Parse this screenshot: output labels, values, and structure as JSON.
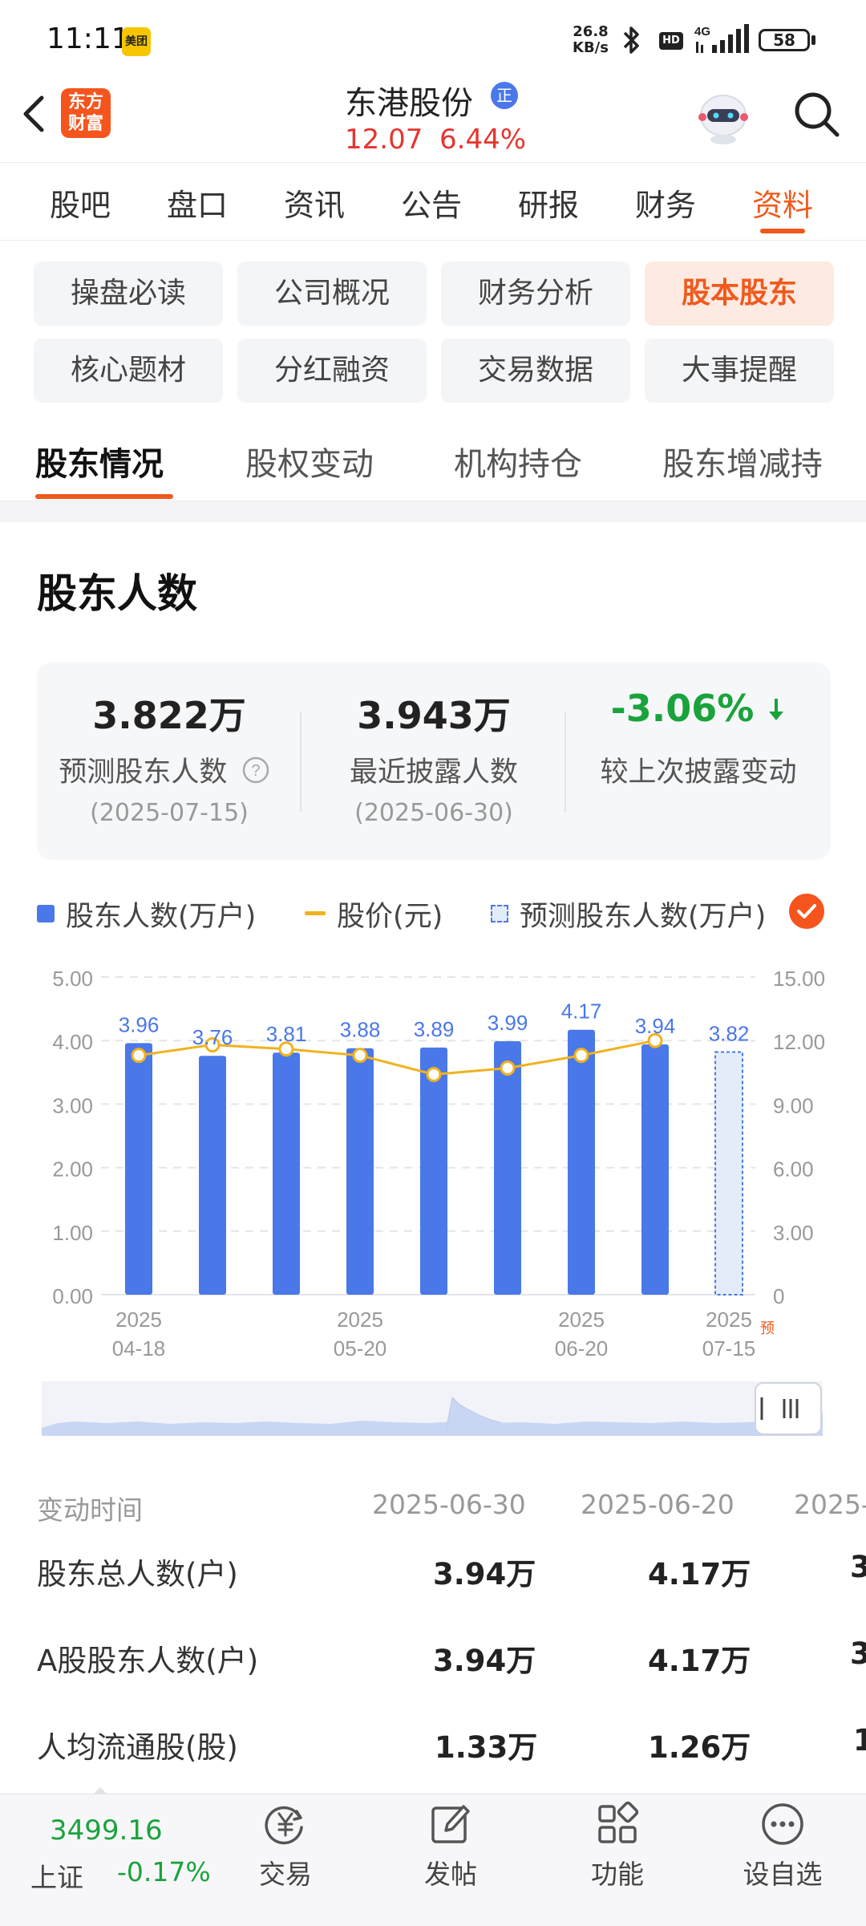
{
  "status": {
    "time": "11:11",
    "app_badge": "美团",
    "net_speed_value": "26.8",
    "net_speed_unit": "KB/s",
    "hd": "HD",
    "network": "4G",
    "battery": "58"
  },
  "header": {
    "app_logo": "东方财富",
    "stock_name": "东港股份",
    "badge": "正",
    "price": "12.07",
    "change_pct": "6.44%"
  },
  "main_tabs": [
    "股吧",
    "盘口",
    "资讯",
    "公告",
    "研报",
    "财务",
    "资料"
  ],
  "main_tab_active": "资料",
  "sub_grid": [
    "操盘必读",
    "公司概况",
    "财务分析",
    "股本股东",
    "核心题材",
    "分红融资",
    "交易数据",
    "大事提醒"
  ],
  "sub_grid_active": "股本股东",
  "shareholder_tabs": [
    "股东情况",
    "股权变动",
    "机构持仓",
    "股东增减持"
  ],
  "section_title": "股东人数",
  "stats": [
    {
      "value": "3.822万",
      "label": "预测股东人数",
      "date": "(2025-07-15)"
    },
    {
      "value": "3.943万",
      "label": "最近披露人数",
      "date": "(2025-06-30)"
    },
    {
      "value": "-3.06%",
      "label": "较上次披露变动"
    }
  ],
  "legend": {
    "holders": "股东人数(万户)",
    "price": "股价(元)",
    "predicted": "预测股东人数(万户)"
  },
  "colors": {
    "accent": "#ef5a1c",
    "bar": "#4a78e8",
    "line": "#f0b21e",
    "up": "#e5352e",
    "down": "#1aa33c"
  },
  "chart_data": {
    "type": "bar",
    "categories": [
      "2025-04-18",
      "",
      "",
      "2025-05-20",
      "",
      "",
      "2025-06-20",
      "",
      "2025-07-15"
    ],
    "x_tick_labels": [
      {
        "year": "2025",
        "date": "04-18",
        "index": 0
      },
      {
        "year": "2025",
        "date": "05-20",
        "index": 3
      },
      {
        "year": "2025",
        "date": "06-20",
        "index": 6
      },
      {
        "year": "2025",
        "date": "07-15",
        "index": 8
      }
    ],
    "predicted_marker": "预",
    "series": [
      {
        "name": "股东人数(万户)",
        "values": [
          3.96,
          3.76,
          3.81,
          3.88,
          3.89,
          3.99,
          4.17,
          3.94,
          null
        ]
      },
      {
        "name": "预测股东人数(万户)",
        "values": [
          null,
          null,
          null,
          null,
          null,
          null,
          null,
          null,
          3.82
        ]
      },
      {
        "name": "股价(元)",
        "axis": "right",
        "values": [
          11.3,
          11.8,
          11.6,
          11.3,
          10.4,
          10.7,
          11.3,
          12.0,
          null
        ]
      }
    ],
    "data_labels": [
      "3.96",
      "3.76",
      "3.81",
      "3.88",
      "3.89",
      "3.99",
      "4.17",
      "3.94",
      "3.82"
    ],
    "left_ticks": [
      "5.00",
      "4.00",
      "3.00",
      "2.00",
      "1.00",
      "0.00"
    ],
    "right_ticks": [
      "15.00",
      "12.00",
      "9.00",
      "6.00",
      "3.00",
      "0"
    ],
    "ylim": [
      0,
      5
    ],
    "y2lim": [
      0,
      15
    ]
  },
  "table": {
    "header_label": "变动时间",
    "columns": [
      "2025-06-30",
      "2025-06-20",
      "2025-"
    ],
    "rows": [
      {
        "label": "股东总人数(户)",
        "values": [
          "3.94万",
          "4.17万",
          "3"
        ]
      },
      {
        "label": "A股股东人数(户)",
        "values": [
          "3.94万",
          "4.17万",
          "3"
        ]
      },
      {
        "label": "人均流通股(股)",
        "values": [
          "1.33万",
          "1.26万",
          "1"
        ]
      }
    ]
  },
  "bottom_nav": {
    "index_value": "3499.16",
    "index_name": "上证",
    "index_change": "-0.17%",
    "items": [
      "交易",
      "发帖",
      "功能",
      "设自选"
    ]
  }
}
